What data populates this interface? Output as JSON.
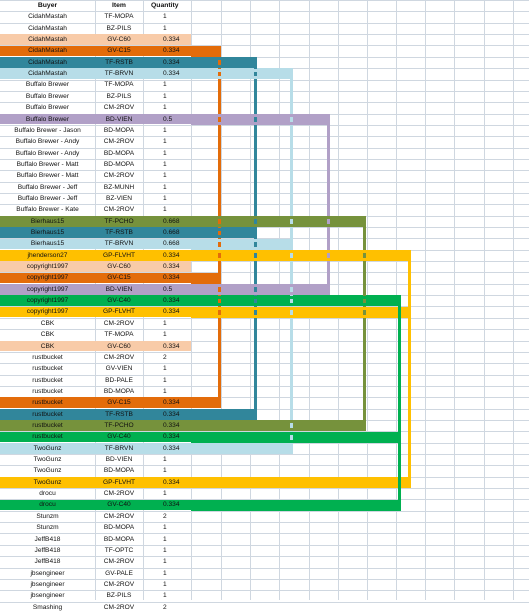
{
  "headers": {
    "buyer": "Buyer",
    "item": "Item",
    "quantity": "Quantity"
  },
  "colors": {
    "peach": "#f8cba8",
    "orange": "#e36c0a",
    "teal": "#31869b",
    "lightblue": "#b7dde8",
    "lavender": "#b1a0c7",
    "olive": "#76923c",
    "yellow": "#ffc000",
    "green": "#00b050",
    "grid": "#cfd7e0"
  },
  "rows": [
    {
      "buyer": "CidahMastah",
      "item": "TF-MOPA",
      "qty": "1",
      "color": ""
    },
    {
      "buyer": "CidahMastah",
      "item": "BZ-PILS",
      "qty": "1",
      "color": ""
    },
    {
      "buyer": "CidahMastah",
      "item": "GV-C60",
      "qty": "0.334",
      "color": "peach"
    },
    {
      "buyer": "CidahMastah",
      "item": "GV-C15",
      "qty": "0.334",
      "color": "orange"
    },
    {
      "buyer": "CidahMastah",
      "item": "TF-RSTB",
      "qty": "0.334",
      "color": "teal"
    },
    {
      "buyer": "CidahMastah",
      "item": "TF-BRVN",
      "qty": "0.334",
      "color": "lightblue"
    },
    {
      "buyer": "Buffalo Brewer",
      "item": "TF-MOPA",
      "qty": "1",
      "color": ""
    },
    {
      "buyer": "Buffalo Brewer",
      "item": "BZ-PILS",
      "qty": "1",
      "color": ""
    },
    {
      "buyer": "Buffalo Brewer",
      "item": "CM-2ROV",
      "qty": "1",
      "color": ""
    },
    {
      "buyer": "Buffalo Brewer",
      "item": "BD-VIEN",
      "qty": "0.5",
      "color": "lavender"
    },
    {
      "buyer": "Buffalo Brewer - Jason",
      "item": "BD-MOPA",
      "qty": "1",
      "color": ""
    },
    {
      "buyer": "Buffalo Brewer - Andy",
      "item": "CM-2ROV",
      "qty": "1",
      "color": ""
    },
    {
      "buyer": "Buffalo Brewer - Andy",
      "item": "BD-MOPA",
      "qty": "1",
      "color": ""
    },
    {
      "buyer": "Buffalo Brewer - Matt",
      "item": "BD-MOPA",
      "qty": "1",
      "color": ""
    },
    {
      "buyer": "Buffalo Brewer - Matt",
      "item": "CM-2ROV",
      "qty": "1",
      "color": ""
    },
    {
      "buyer": "Buffalo Brewer - Jeff",
      "item": "BZ-MUNH",
      "qty": "1",
      "color": ""
    },
    {
      "buyer": "Buffalo Brewer - Jeff",
      "item": "BZ-VIEN",
      "qty": "1",
      "color": ""
    },
    {
      "buyer": "Buffalo Brewer - Kate",
      "item": "CM-2ROV",
      "qty": "1",
      "color": ""
    },
    {
      "buyer": "Bierhaus15",
      "item": "TF-PCHO",
      "qty": "0.668",
      "color": "olive"
    },
    {
      "buyer": "Bierhaus15",
      "item": "TF-RSTB",
      "qty": "0.668",
      "color": "teal"
    },
    {
      "buyer": "Bierhaus15",
      "item": "TF-BRVN",
      "qty": "0.668",
      "color": "lightblue"
    },
    {
      "buyer": "jhenderson27",
      "item": "GP-FLVHT",
      "qty": "0.334",
      "color": "yellow"
    },
    {
      "buyer": "copyright1997",
      "item": "GV-C60",
      "qty": "0.334",
      "color": "peach"
    },
    {
      "buyer": "copyright1997",
      "item": "GV-C15",
      "qty": "0.334",
      "color": "orange"
    },
    {
      "buyer": "copyright1997",
      "item": "BD-VIEN",
      "qty": "0.5",
      "color": "lavender"
    },
    {
      "buyer": "copyright1997",
      "item": "GV-C40",
      "qty": "0.334",
      "color": "green"
    },
    {
      "buyer": "copyright1997",
      "item": "GP-FLVHT",
      "qty": "0.334",
      "color": "yellow"
    },
    {
      "buyer": "CBK",
      "item": "CM-2ROV",
      "qty": "1",
      "color": ""
    },
    {
      "buyer": "CBK",
      "item": "TF-MOPA",
      "qty": "1",
      "color": ""
    },
    {
      "buyer": "CBK",
      "item": "GV-C60",
      "qty": "0.334",
      "color": "peach"
    },
    {
      "buyer": "rustbucket",
      "item": "CM-2ROV",
      "qty": "2",
      "color": ""
    },
    {
      "buyer": "rustbucket",
      "item": "GV-VIEN",
      "qty": "1",
      "color": ""
    },
    {
      "buyer": "rustbucket",
      "item": "BD-PALE",
      "qty": "1",
      "color": ""
    },
    {
      "buyer": "rustbucket",
      "item": "BD-MOPA",
      "qty": "1",
      "color": ""
    },
    {
      "buyer": "rustbucket",
      "item": "GV-C15",
      "qty": "0.334",
      "color": "orange"
    },
    {
      "buyer": "rustbucket",
      "item": "TF-RSTB",
      "qty": "0.334",
      "color": "teal"
    },
    {
      "buyer": "rustbucket",
      "item": "TF-PCHO",
      "qty": "0.334",
      "color": "olive"
    },
    {
      "buyer": "rustbucket",
      "item": "GV-C40",
      "qty": "0.334",
      "color": "green"
    },
    {
      "buyer": "TwoGunz",
      "item": "TF-BRVN",
      "qty": "0.334",
      "color": "lightblue"
    },
    {
      "buyer": "TwoGunz",
      "item": "BD-VIEN",
      "qty": "1",
      "color": ""
    },
    {
      "buyer": "TwoGunz",
      "item": "BD-MOPA",
      "qty": "1",
      "color": ""
    },
    {
      "buyer": "TwoGunz",
      "item": "GP-FLVHT",
      "qty": "0.334",
      "color": "yellow"
    },
    {
      "buyer": "drocu",
      "item": "CM-2ROV",
      "qty": "1",
      "color": ""
    },
    {
      "buyer": "drocu",
      "item": "GV-C40",
      "qty": "0.334",
      "color": "green"
    },
    {
      "buyer": "Stunzm",
      "item": "CM-2ROV",
      "qty": "2",
      "color": ""
    },
    {
      "buyer": "Stunzm",
      "item": "BD-MOPA",
      "qty": "1",
      "color": ""
    },
    {
      "buyer": "JeffB418",
      "item": "BD-MOPA",
      "qty": "1",
      "color": ""
    },
    {
      "buyer": "JeffB418",
      "item": "TF-OPTC",
      "qty": "1",
      "color": ""
    },
    {
      "buyer": "JeffB418",
      "item": "CM-2ROV",
      "qty": "1",
      "color": ""
    },
    {
      "buyer": "jbsengineer",
      "item": "GV-PALE",
      "qty": "1",
      "color": ""
    },
    {
      "buyer": "jbsengineer",
      "item": "CM-2ROV",
      "qty": "1",
      "color": ""
    },
    {
      "buyer": "jbsengineer",
      "item": "BZ-PILS",
      "qty": "1",
      "color": ""
    },
    {
      "buyer": "Smashing",
      "item": "CM-2ROV",
      "qty": "2",
      "color": ""
    }
  ],
  "groups": [
    {
      "color": "peach",
      "rows": [
        2,
        22,
        29
      ]
    },
    {
      "color": "orange",
      "rows": [
        3,
        23,
        34
      ]
    },
    {
      "color": "teal",
      "rows": [
        4,
        19,
        35
      ]
    },
    {
      "color": "lightblue",
      "rows": [
        5,
        20,
        38
      ]
    },
    {
      "color": "lavender",
      "rows": [
        9,
        24
      ]
    },
    {
      "color": "olive",
      "rows": [
        18,
        36
      ]
    },
    {
      "color": "yellow",
      "rows": [
        21,
        26,
        41
      ]
    },
    {
      "color": "green",
      "rows": [
        25,
        37,
        43
      ]
    }
  ]
}
